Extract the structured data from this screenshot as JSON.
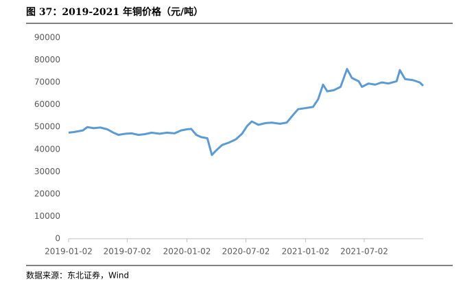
{
  "chart_data": {
    "type": "line",
    "title": "图 37：2019-2021 年铜价格（元/吨）",
    "source": "数据来源：东北证券，Wind",
    "color": "#5b9bd5",
    "grid": false,
    "x": [
      "2019-01-02",
      "2019-01-20",
      "2019-02-15",
      "2019-03-01",
      "2019-03-20",
      "2019-04-10",
      "2019-05-01",
      "2019-05-20",
      "2019-06-05",
      "2019-06-25",
      "2019-07-15",
      "2019-08-05",
      "2019-08-25",
      "2019-09-15",
      "2019-10-10",
      "2019-11-01",
      "2019-11-25",
      "2019-12-15",
      "2020-01-02",
      "2020-01-15",
      "2020-01-31",
      "2020-02-15",
      "2020-03-05",
      "2020-03-19",
      "2020-04-01",
      "2020-04-20",
      "2020-05-10",
      "2020-06-01",
      "2020-06-20",
      "2020-07-06",
      "2020-07-20",
      "2020-08-10",
      "2020-09-01",
      "2020-09-20",
      "2020-10-15",
      "2020-11-05",
      "2020-11-25",
      "2020-12-10",
      "2021-01-02",
      "2021-01-25",
      "2021-02-10",
      "2021-02-25",
      "2021-03-10",
      "2021-03-30",
      "2021-04-20",
      "2021-05-10",
      "2021-05-25",
      "2021-06-15",
      "2021-06-25",
      "2021-07-15",
      "2021-08-05",
      "2021-08-25",
      "2021-09-15",
      "2021-10-10",
      "2021-10-20",
      "2021-11-05",
      "2021-11-30",
      "2021-12-20",
      "2021-12-31"
    ],
    "values": [
      47500,
      47800,
      48500,
      50000,
      49500,
      49800,
      49000,
      47500,
      46500,
      47000,
      47200,
      46500,
      46800,
      47500,
      47000,
      47500,
      47200,
      48500,
      49000,
      49200,
      46500,
      45500,
      45000,
      37500,
      39500,
      42000,
      43000,
      44500,
      47000,
      50500,
      52500,
      51000,
      51800,
      52000,
      51500,
      52000,
      55500,
      58000,
      58500,
      59000,
      62500,
      69000,
      66000,
      66500,
      68000,
      76000,
      72000,
      70500,
      68000,
      69500,
      69000,
      70000,
      69500,
      70500,
      75500,
      71500,
      71000,
      70000,
      68500
    ],
    "xlim": [
      "2019-01-02",
      "2021-12-31"
    ],
    "xticks": [
      "2019-01-02",
      "2019-07-02",
      "2020-01-02",
      "2020-07-02",
      "2021-01-02",
      "2021-07-02"
    ],
    "ylim": [
      0,
      90000
    ],
    "yticks": [
      0,
      10000,
      20000,
      30000,
      40000,
      50000,
      60000,
      70000,
      80000,
      90000
    ]
  }
}
